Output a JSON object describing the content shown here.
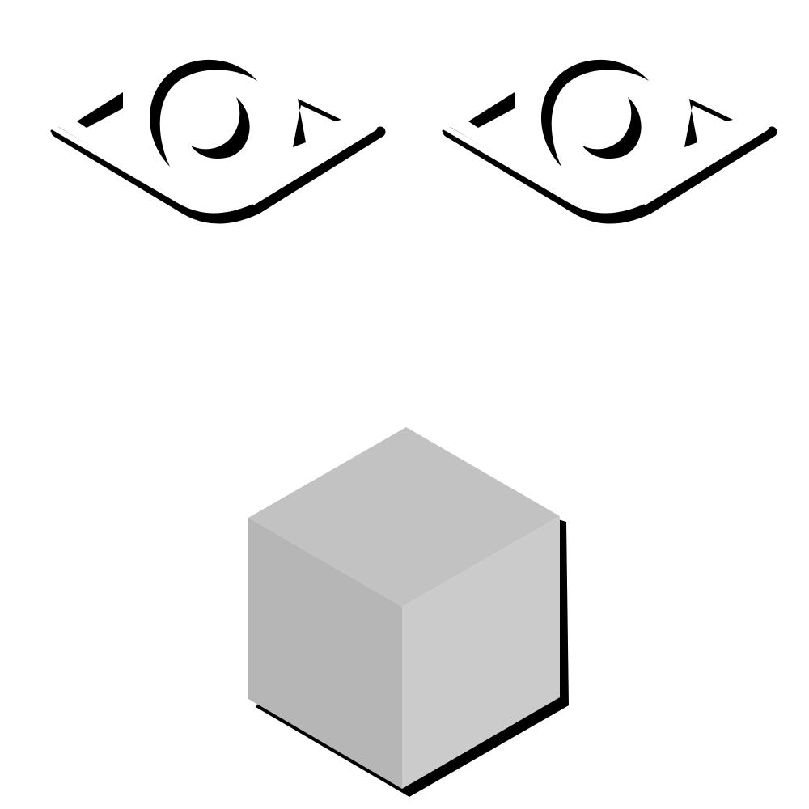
{
  "figure": {
    "background": "#ffffff",
    "ink": "#000000",
    "eyes": [
      {
        "name": "left-eye-icon"
      },
      {
        "name": "right-eye-icon"
      }
    ],
    "cube": {
      "top_face_color": "#c2c2c2",
      "left_face_color": "#b6b6b6",
      "right_face_color": "#cbcbcb",
      "shadow_color": "#000000"
    }
  }
}
